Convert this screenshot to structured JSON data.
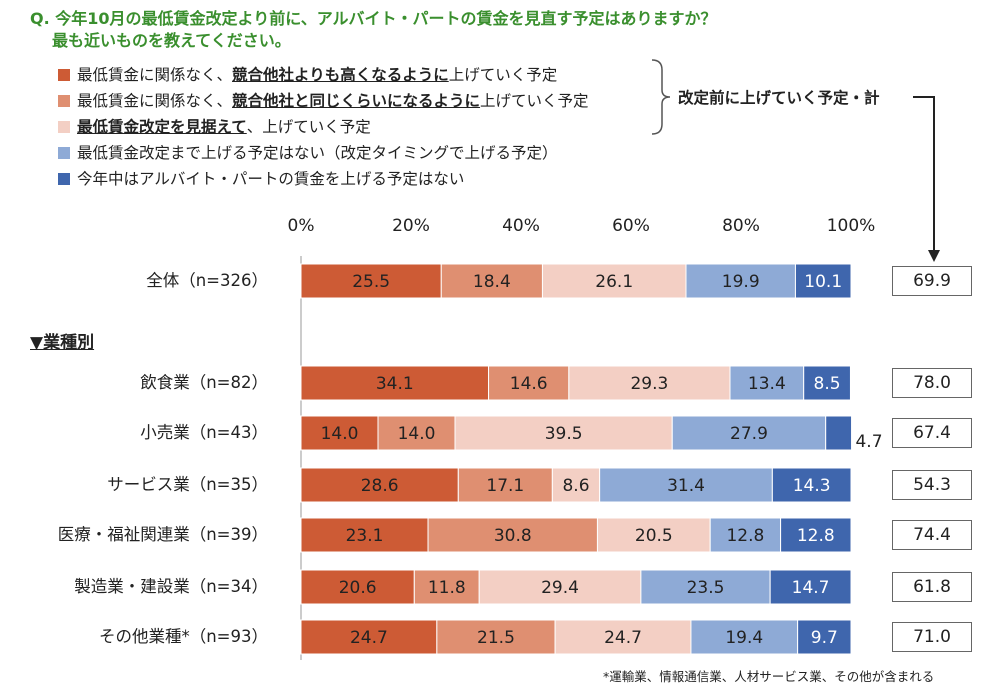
{
  "question": {
    "line1": "Q. 今年10月の最低賃金改定より前に、アルバイト・パートの賃金を見直す予定はありますか？",
    "line2": "最も近いものを教えてください。"
  },
  "legend": [
    {
      "pre": "最低賃金に関係なく、",
      "bold": "競合他社よりも高くなるように",
      "post": "上げていく予定",
      "color": "#cd5b35"
    },
    {
      "pre": "最低賃金に関係なく、",
      "bold": "競合他社と同じくらいになるように",
      "post": "上げていく予定",
      "color": "#df8f71"
    },
    {
      "pre": "",
      "bold": "最低賃金改定を見据えて",
      "post": "、上げていく予定",
      "color": "#f3cfc4"
    },
    {
      "pre": "最低賃金改定まで上げる予定はない（改定タイミングで上げる予定）",
      "bold": "",
      "post": "",
      "color": "#8eaad6"
    },
    {
      "pre": "今年中はアルバイト・パートの賃金を上げる予定はない",
      "bold": "",
      "post": "",
      "color": "#3f66ad"
    }
  ],
  "brace_label": "改定前に上げていく予定・計",
  "group_label": "▼業種別",
  "footnote": "*運輸業、情報通信業、人材サービス業、その他が含まれる",
  "chart_data": {
    "type": "bar",
    "orientation": "horizontal",
    "stacked": true,
    "percent_axis": true,
    "xlim": [
      0,
      100
    ],
    "x_ticks": [
      "0%",
      "20%",
      "40%",
      "60%",
      "80%",
      "100%"
    ],
    "series_names": [
      "最低賃金に関係なく、競合他社よりも高くなるように上げていく予定",
      "最低賃金に関係なく、競合他社と同じくらいになるように上げていく予定",
      "最低賃金改定を見据えて、上げていく予定",
      "最低賃金改定まで上げる予定はない（改定タイミングで上げる予定）",
      "今年中はアルバイト・パートの賃金を上げる予定はない"
    ],
    "rows": [
      {
        "label": "全体（n=326）",
        "values": [
          25.5,
          18.4,
          26.1,
          19.9,
          10.1
        ],
        "labels": [
          "25.5",
          "18.4",
          "26.1",
          "19.9",
          "10.1"
        ],
        "total": "69.9"
      },
      {
        "label": "飲食業（n=82）",
        "values": [
          34.1,
          14.6,
          29.3,
          13.4,
          8.5
        ],
        "labels": [
          "34.1",
          "14.6",
          "29.3",
          "13.4",
          "8.5"
        ],
        "total": "78.0"
      },
      {
        "label": "小売業（n=43）",
        "values": [
          14.0,
          14.0,
          39.5,
          27.9,
          4.7
        ],
        "labels": [
          "14.0",
          "14.0",
          "39.5",
          "27.9",
          "4.7"
        ],
        "total": "67.4"
      },
      {
        "label": "サービス業（n=35）",
        "values": [
          28.6,
          17.1,
          8.6,
          31.4,
          14.3
        ],
        "labels": [
          "28.6",
          "17.1",
          "8.6",
          "31.4",
          "14.3"
        ],
        "total": "54.3"
      },
      {
        "label": "医療・福祉関連業（n=39）",
        "values": [
          23.1,
          30.8,
          20.5,
          12.8,
          12.8
        ],
        "labels": [
          "23.1",
          "30.8",
          "20.5",
          "12.8",
          "12.8"
        ],
        "total": "74.4"
      },
      {
        "label": "製造業・建設業（n=34）",
        "values": [
          20.6,
          11.8,
          29.4,
          23.5,
          14.7
        ],
        "labels": [
          "20.6",
          "11.8",
          "29.4",
          "23.5",
          "14.7"
        ],
        "total": "61.8"
      },
      {
        "label": "その他業種*（n=93）",
        "values": [
          24.7,
          21.5,
          24.7,
          19.4,
          9.7
        ],
        "labels": [
          "24.7",
          "21.5",
          "24.7",
          "19.4",
          "9.7"
        ],
        "total": "71.0"
      }
    ]
  }
}
